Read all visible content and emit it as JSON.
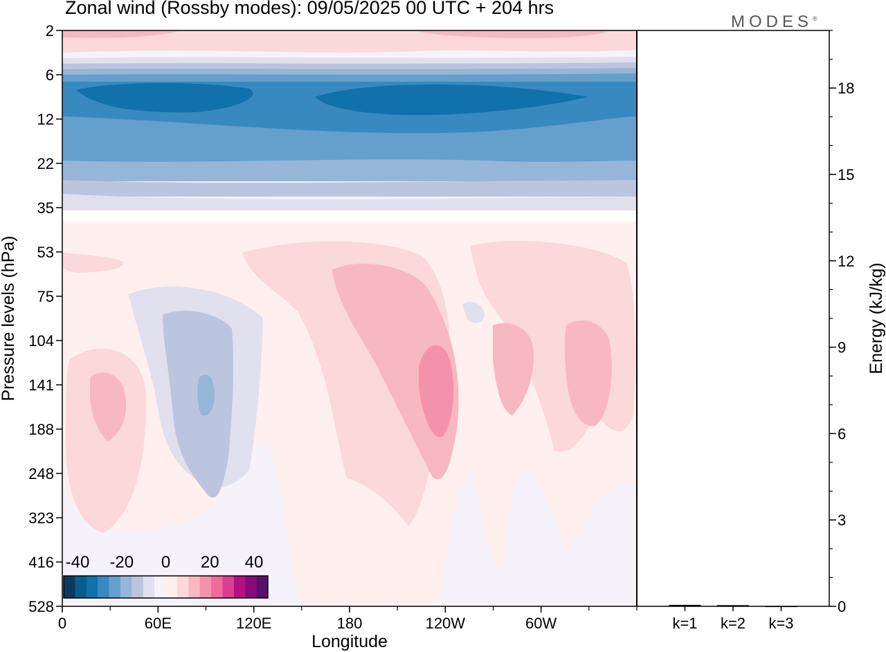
{
  "header": {
    "title": "Zonal wind (Rossby modes):  09/05/2025  00 UTC  + 204 hrs",
    "logo_text": "MODES",
    "logo_mark": "®"
  },
  "chart_data": [
    {
      "type": "heatmap",
      "title": "Zonal wind (Rossby modes):  09/05/2025  00 UTC  + 204 hrs",
      "xlabel": "Longitude",
      "ylabel": "Pressure levels (hPa)",
      "x_ticks": [
        "0",
        "60E",
        "120E",
        "180",
        "120W",
        "60W"
      ],
      "x_tick_values": [
        0,
        60,
        120,
        180,
        240,
        300
      ],
      "xlim": [
        0,
        360
      ],
      "y_ticks": [
        "2",
        "6",
        "12",
        "22",
        "35",
        "53",
        "75",
        "104",
        "141",
        "188",
        "248",
        "323",
        "416",
        "528"
      ],
      "y_scale": "pressure levels (top 2 hPa, bottom 528 hPa)",
      "colorbar": {
        "labels": [
          "-40",
          "-20",
          "0",
          "20",
          "40"
        ],
        "colors": [
          "#0b3a5e",
          "#0a5b8e",
          "#1171aa",
          "#3889c0",
          "#64a0cb",
          "#95b6d6",
          "#bcc5df",
          "#e0e0ee",
          "#f5f3f9",
          "#fff0ef",
          "#fbd8d9",
          "#f8b8c1",
          "#f592ab",
          "#ef6a9d",
          "#dc3e92",
          "#b41180",
          "#870a77",
          "#58106a"
        ]
      },
      "field_bands_top_to_bottom": [
        {
          "level_range": [
            "2",
            "4"
          ],
          "value": 12,
          "note": "weak westerlies, strongest near 120W–60W"
        },
        {
          "level_range": [
            "6",
            "8"
          ],
          "value": -15
        },
        {
          "level_range": [
            "8",
            "12"
          ],
          "value": -32,
          "note": "core minima near 30E–90E and 180–120W"
        },
        {
          "level_range": [
            "12",
            "22"
          ],
          "value": -22
        },
        {
          "level_range": [
            "22",
            "35"
          ],
          "value": -10
        },
        {
          "level_range": [
            "35",
            "53"
          ],
          "value": 2
        },
        {
          "level_range": [
            "53",
            "528"
          ],
          "value": 5,
          "note": "tropospheric positive lobes"
        }
      ],
      "features": [
        {
          "center": "30E",
          "level": "141",
          "value": 12
        },
        {
          "center": "90E",
          "level": "141",
          "value": -7
        },
        {
          "center": "115W",
          "level": "141",
          "value": 18
        },
        {
          "center": "80W",
          "level": "141",
          "value": 12
        },
        {
          "center": "35W",
          "level": "141",
          "value": 12
        }
      ]
    },
    {
      "type": "bar",
      "ylabel": "Energy (kJ/kg)",
      "categories": [
        "k=1",
        "k=2",
        "k=3"
      ],
      "values": [
        0.05,
        0.04,
        0.01
      ],
      "y_ticks": [
        "0",
        "3",
        "6",
        "9",
        "12",
        "15",
        "18"
      ],
      "ylim": [
        0,
        20
      ],
      "y_axis_side": "right"
    }
  ]
}
